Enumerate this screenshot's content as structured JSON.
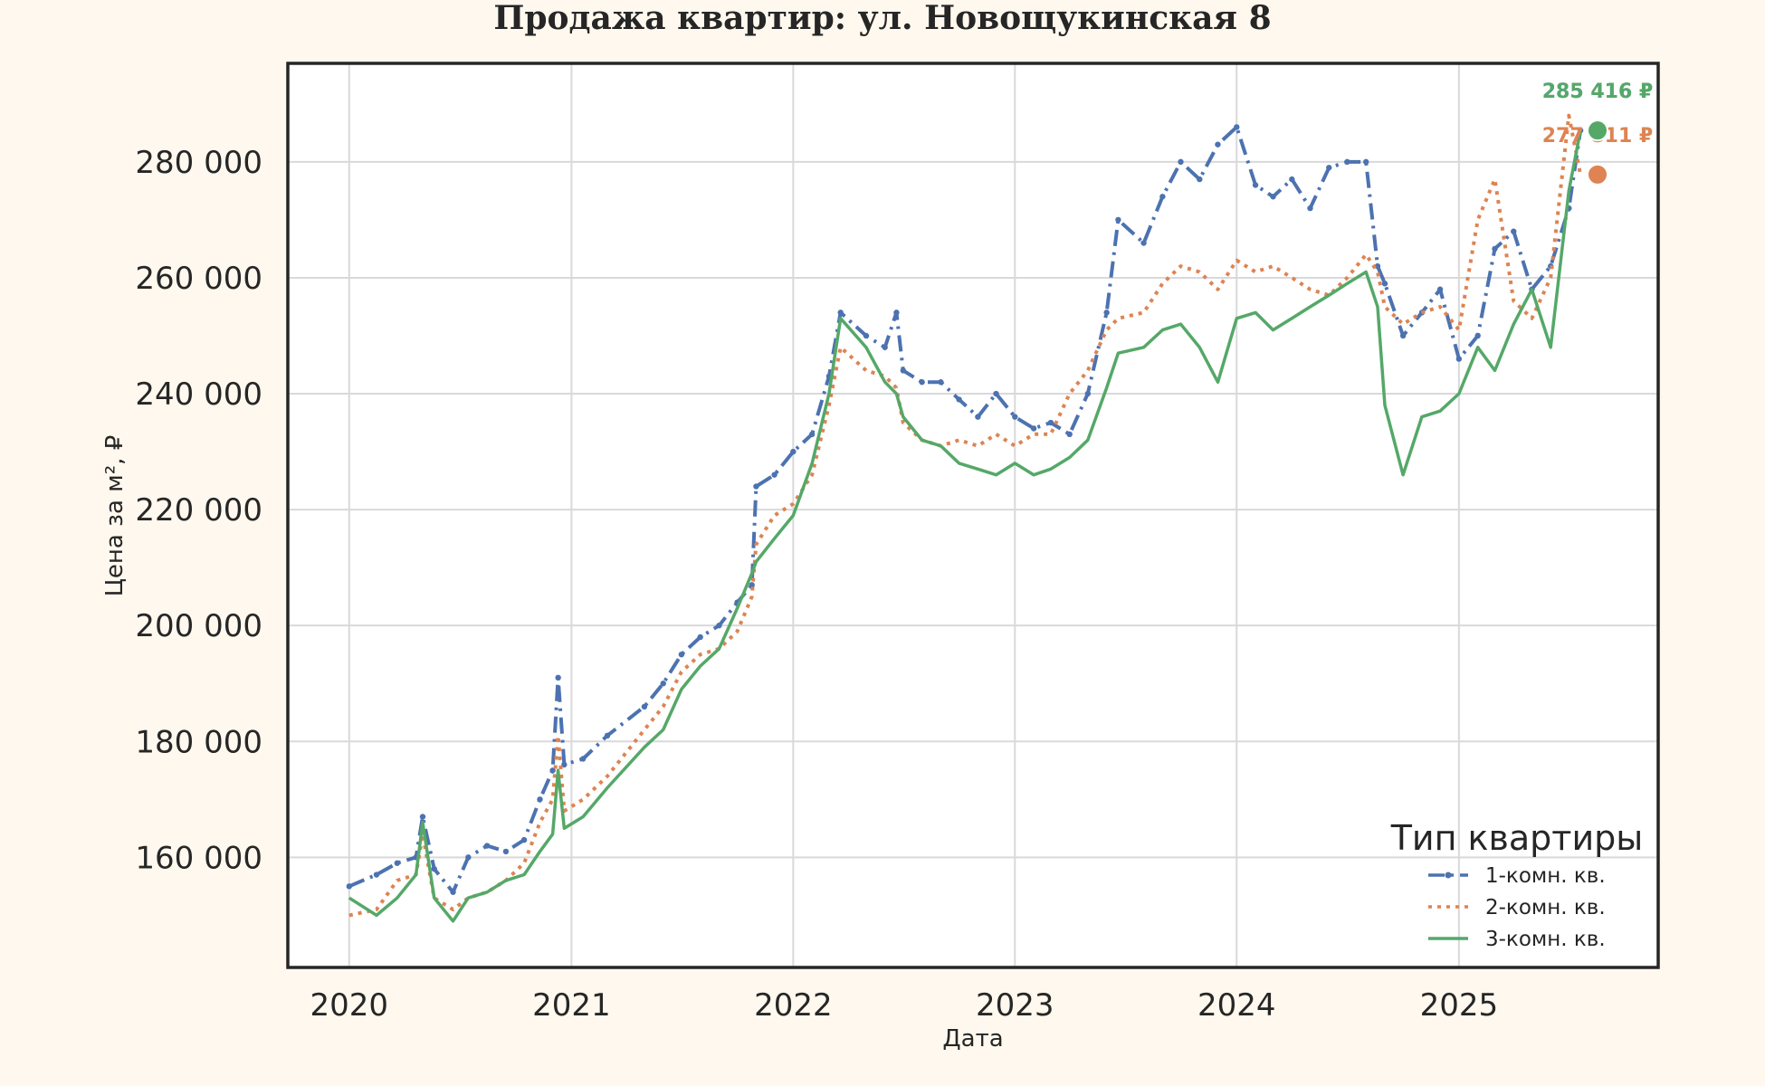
{
  "chart_data": {
    "type": "line",
    "title": "Продажа квартир: ул. Новощукинская 8",
    "xlabel": "Дата",
    "ylabel": "Цена за м², ₽",
    "x_ticks": [
      "2020",
      "2021",
      "2022",
      "2023",
      "2024",
      "2025"
    ],
    "y_ticks": [
      "160 000",
      "180 000",
      "200 000",
      "220 000",
      "240 000",
      "260 000",
      "280 000"
    ],
    "xlim": [
      "2019-09-22",
      "2025-11-25"
    ],
    "ylim": [
      141000,
      297000
    ],
    "grid": true,
    "legend": {
      "title": "Тип квартиры",
      "position": "bottom-right"
    },
    "series": [
      {
        "name": "1-комн. кв.",
        "color": "#4c72b0",
        "dash": "dashdot",
        "end_label": "285 416 ₽",
        "points": [
          [
            "2020-01-01",
            155000
          ],
          [
            "2020-02-15",
            157000
          ],
          [
            "2020-03-20",
            159000
          ],
          [
            "2020-04-20",
            160000
          ],
          [
            "2020-05-01",
            167000
          ],
          [
            "2020-05-20",
            158000
          ],
          [
            "2020-06-20",
            154000
          ],
          [
            "2020-07-15",
            160000
          ],
          [
            "2020-08-15",
            162000
          ],
          [
            "2020-09-15",
            161000
          ],
          [
            "2020-10-15",
            163000
          ],
          [
            "2020-11-10",
            170000
          ],
          [
            "2020-12-01",
            175000
          ],
          [
            "2020-12-10",
            191000
          ],
          [
            "2020-12-20",
            176000
          ],
          [
            "2021-01-20",
            177000
          ],
          [
            "2021-03-01",
            181000
          ],
          [
            "2021-05-01",
            186000
          ],
          [
            "2021-06-01",
            190000
          ],
          [
            "2021-07-01",
            195000
          ],
          [
            "2021-08-01",
            198000
          ],
          [
            "2021-09-01",
            200000
          ],
          [
            "2021-10-01",
            204000
          ],
          [
            "2021-10-25",
            207000
          ],
          [
            "2021-11-01",
            224000
          ],
          [
            "2021-12-01",
            226000
          ],
          [
            "2022-01-01",
            230000
          ],
          [
            "2022-02-01",
            233000
          ],
          [
            "2022-03-01",
            243000
          ],
          [
            "2022-03-20",
            254000
          ],
          [
            "2022-05-01",
            250000
          ],
          [
            "2022-06-01",
            248000
          ],
          [
            "2022-06-20",
            254000
          ],
          [
            "2022-07-01",
            244000
          ],
          [
            "2022-08-01",
            242000
          ],
          [
            "2022-09-01",
            242000
          ],
          [
            "2022-10-01",
            239000
          ],
          [
            "2022-11-01",
            236000
          ],
          [
            "2022-12-01",
            240000
          ],
          [
            "2023-01-01",
            236000
          ],
          [
            "2023-02-01",
            234000
          ],
          [
            "2023-03-01",
            235000
          ],
          [
            "2023-04-01",
            233000
          ],
          [
            "2023-05-01",
            240000
          ],
          [
            "2023-06-01",
            254000
          ],
          [
            "2023-06-20",
            270000
          ],
          [
            "2023-08-01",
            266000
          ],
          [
            "2023-09-01",
            274000
          ],
          [
            "2023-10-01",
            280000
          ],
          [
            "2023-11-01",
            277000
          ],
          [
            "2023-12-01",
            283000
          ],
          [
            "2024-01-01",
            286000
          ],
          [
            "2024-02-01",
            276000
          ],
          [
            "2024-03-01",
            274000
          ],
          [
            "2024-04-01",
            277000
          ],
          [
            "2024-05-01",
            272000
          ],
          [
            "2024-06-01",
            279000
          ],
          [
            "2024-07-01",
            280000
          ],
          [
            "2024-08-01",
            280000
          ],
          [
            "2024-08-20",
            262000
          ],
          [
            "2024-09-01",
            259000
          ],
          [
            "2024-10-01",
            250000
          ],
          [
            "2024-11-01",
            254000
          ],
          [
            "2024-12-01",
            258000
          ],
          [
            "2025-01-01",
            246000
          ],
          [
            "2025-02-01",
            250000
          ],
          [
            "2025-03-01",
            265000
          ],
          [
            "2025-04-01",
            268000
          ],
          [
            "2025-05-01",
            258000
          ],
          [
            "2025-06-01",
            262000
          ],
          [
            "2025-07-01",
            272000
          ],
          [
            "2025-07-20",
            285416
          ]
        ]
      },
      {
        "name": "2-комн. кв.",
        "color": "#dd8452",
        "dash": "dotted",
        "end_label": "277 811 ₽",
        "points": [
          [
            "2020-01-01",
            150000
          ],
          [
            "2020-02-15",
            151000
          ],
          [
            "2020-03-20",
            156000
          ],
          [
            "2020-04-20",
            157000
          ],
          [
            "2020-05-01",
            164000
          ],
          [
            "2020-05-20",
            153000
          ],
          [
            "2020-06-20",
            151000
          ],
          [
            "2020-07-15",
            153000
          ],
          [
            "2020-08-15",
            154000
          ],
          [
            "2020-09-15",
            156000
          ],
          [
            "2020-10-15",
            159000
          ],
          [
            "2020-11-10",
            166000
          ],
          [
            "2020-12-01",
            170000
          ],
          [
            "2020-12-10",
            181000
          ],
          [
            "2020-12-20",
            168000
          ],
          [
            "2021-01-20",
            170000
          ],
          [
            "2021-03-01",
            174000
          ],
          [
            "2021-05-01",
            182000
          ],
          [
            "2021-06-01",
            186000
          ],
          [
            "2021-07-01",
            192000
          ],
          [
            "2021-08-01",
            195000
          ],
          [
            "2021-09-01",
            196000
          ],
          [
            "2021-10-01",
            199000
          ],
          [
            "2021-10-25",
            205000
          ],
          [
            "2021-11-01",
            214000
          ],
          [
            "2021-12-01",
            219000
          ],
          [
            "2022-01-01",
            221000
          ],
          [
            "2022-02-01",
            226000
          ],
          [
            "2022-03-01",
            238000
          ],
          [
            "2022-03-20",
            248000
          ],
          [
            "2022-05-01",
            244000
          ],
          [
            "2022-06-01",
            243000
          ],
          [
            "2022-06-20",
            241000
          ],
          [
            "2022-07-01",
            235000
          ],
          [
            "2022-08-01",
            232000
          ],
          [
            "2022-09-01",
            231000
          ],
          [
            "2022-10-01",
            232000
          ],
          [
            "2022-11-01",
            231000
          ],
          [
            "2022-12-01",
            233000
          ],
          [
            "2023-01-01",
            231000
          ],
          [
            "2023-02-01",
            233000
          ],
          [
            "2023-03-01",
            233000
          ],
          [
            "2023-04-01",
            240000
          ],
          [
            "2023-05-01",
            244000
          ],
          [
            "2023-06-01",
            251000
          ],
          [
            "2023-06-20",
            253000
          ],
          [
            "2023-08-01",
            254000
          ],
          [
            "2023-09-01",
            259000
          ],
          [
            "2023-10-01",
            262000
          ],
          [
            "2023-11-01",
            261000
          ],
          [
            "2023-12-01",
            258000
          ],
          [
            "2024-01-01",
            263000
          ],
          [
            "2024-02-01",
            261000
          ],
          [
            "2024-03-01",
            262000
          ],
          [
            "2024-04-01",
            260000
          ],
          [
            "2024-05-01",
            258000
          ],
          [
            "2024-06-01",
            257000
          ],
          [
            "2024-07-01",
            260000
          ],
          [
            "2024-08-01",
            264000
          ],
          [
            "2024-08-20",
            261000
          ],
          [
            "2024-09-01",
            255000
          ],
          [
            "2024-10-01",
            252000
          ],
          [
            "2024-11-01",
            254000
          ],
          [
            "2024-12-01",
            255000
          ],
          [
            "2025-01-01",
            251000
          ],
          [
            "2025-02-01",
            270000
          ],
          [
            "2025-03-01",
            277000
          ],
          [
            "2025-04-01",
            256000
          ],
          [
            "2025-05-01",
            253000
          ],
          [
            "2025-06-01",
            260000
          ],
          [
            "2025-07-01",
            288000
          ],
          [
            "2025-07-20",
            277811
          ]
        ]
      },
      {
        "name": "3-комн. кв.",
        "color": "#55a868",
        "dash": "solid",
        "end_label": "285 416 ₽",
        "points": [
          [
            "2020-01-01",
            153000
          ],
          [
            "2020-02-15",
            150000
          ],
          [
            "2020-03-20",
            153000
          ],
          [
            "2020-04-20",
            157000
          ],
          [
            "2020-05-01",
            166000
          ],
          [
            "2020-05-20",
            153000
          ],
          [
            "2020-06-20",
            149000
          ],
          [
            "2020-07-15",
            153000
          ],
          [
            "2020-08-15",
            154000
          ],
          [
            "2020-09-15",
            156000
          ],
          [
            "2020-10-15",
            157000
          ],
          [
            "2020-11-10",
            161000
          ],
          [
            "2020-12-01",
            164000
          ],
          [
            "2020-12-10",
            175000
          ],
          [
            "2020-12-20",
            165000
          ],
          [
            "2021-01-20",
            167000
          ],
          [
            "2021-03-01",
            172000
          ],
          [
            "2021-05-01",
            179000
          ],
          [
            "2021-06-01",
            182000
          ],
          [
            "2021-07-01",
            189000
          ],
          [
            "2021-08-01",
            193000
          ],
          [
            "2021-09-01",
            196000
          ],
          [
            "2021-10-01",
            203000
          ],
          [
            "2021-10-25",
            209000
          ],
          [
            "2021-11-01",
            211000
          ],
          [
            "2021-12-01",
            215000
          ],
          [
            "2022-01-01",
            219000
          ],
          [
            "2022-02-01",
            228000
          ],
          [
            "2022-03-01",
            240000
          ],
          [
            "2022-03-20",
            253000
          ],
          [
            "2022-05-01",
            248000
          ],
          [
            "2022-06-01",
            242000
          ],
          [
            "2022-06-20",
            240000
          ],
          [
            "2022-07-01",
            236000
          ],
          [
            "2022-08-01",
            232000
          ],
          [
            "2022-09-01",
            231000
          ],
          [
            "2022-10-01",
            228000
          ],
          [
            "2022-11-01",
            227000
          ],
          [
            "2022-12-01",
            226000
          ],
          [
            "2023-01-01",
            228000
          ],
          [
            "2023-02-01",
            226000
          ],
          [
            "2023-03-01",
            227000
          ],
          [
            "2023-04-01",
            229000
          ],
          [
            "2023-05-01",
            232000
          ],
          [
            "2023-06-01",
            241000
          ],
          [
            "2023-06-20",
            247000
          ],
          [
            "2023-08-01",
            248000
          ],
          [
            "2023-09-01",
            251000
          ],
          [
            "2023-10-01",
            252000
          ],
          [
            "2023-11-01",
            248000
          ],
          [
            "2023-12-01",
            242000
          ],
          [
            "2024-01-01",
            253000
          ],
          [
            "2024-02-01",
            254000
          ],
          [
            "2024-03-01",
            251000
          ],
          [
            "2024-04-01",
            253000
          ],
          [
            "2024-05-01",
            255000
          ],
          [
            "2024-06-01",
            257000
          ],
          [
            "2024-07-01",
            259000
          ],
          [
            "2024-08-01",
            261000
          ],
          [
            "2024-08-20",
            255000
          ],
          [
            "2024-09-01",
            238000
          ],
          [
            "2024-10-01",
            226000
          ],
          [
            "2024-11-01",
            236000
          ],
          [
            "2024-12-01",
            237000
          ],
          [
            "2025-01-01",
            240000
          ],
          [
            "2025-02-01",
            248000
          ],
          [
            "2025-03-01",
            244000
          ],
          [
            "2025-04-01",
            252000
          ],
          [
            "2025-05-01",
            258000
          ],
          [
            "2025-06-01",
            248000
          ],
          [
            "2025-07-01",
            275000
          ],
          [
            "2025-07-20",
            285416
          ]
        ]
      }
    ]
  }
}
